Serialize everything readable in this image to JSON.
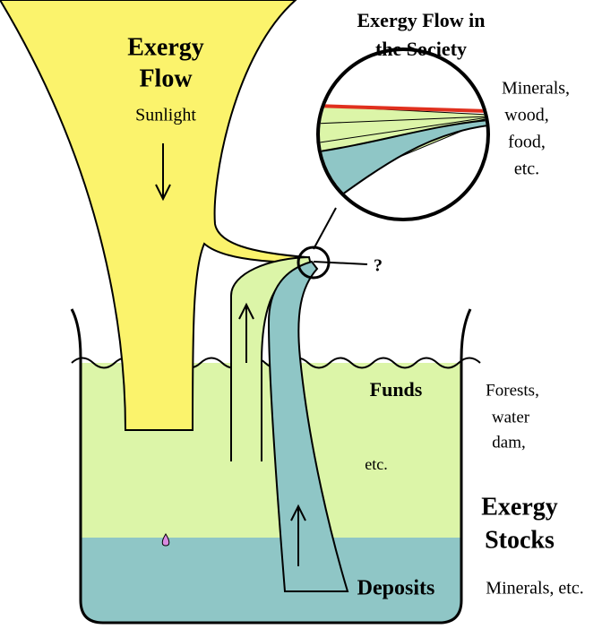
{
  "title": {
    "lines": [
      "Exergy Flow in",
      "the Society"
    ]
  },
  "flow": {
    "title_lines": [
      "Exergy",
      "Flow"
    ],
    "source": "Sunlight"
  },
  "society_inputs": [
    "Minerals,",
    "wood,",
    "food,",
    "etc."
  ],
  "unknown": "?",
  "funds": {
    "label": "Funds",
    "examples": [
      "Forests,",
      "water",
      "dam,"
    ],
    "more": "etc."
  },
  "stocks": {
    "title_lines": [
      "Exergy",
      "Stocks"
    ]
  },
  "deposits": {
    "label": "Deposits",
    "examples": "Minerals, etc."
  }
}
